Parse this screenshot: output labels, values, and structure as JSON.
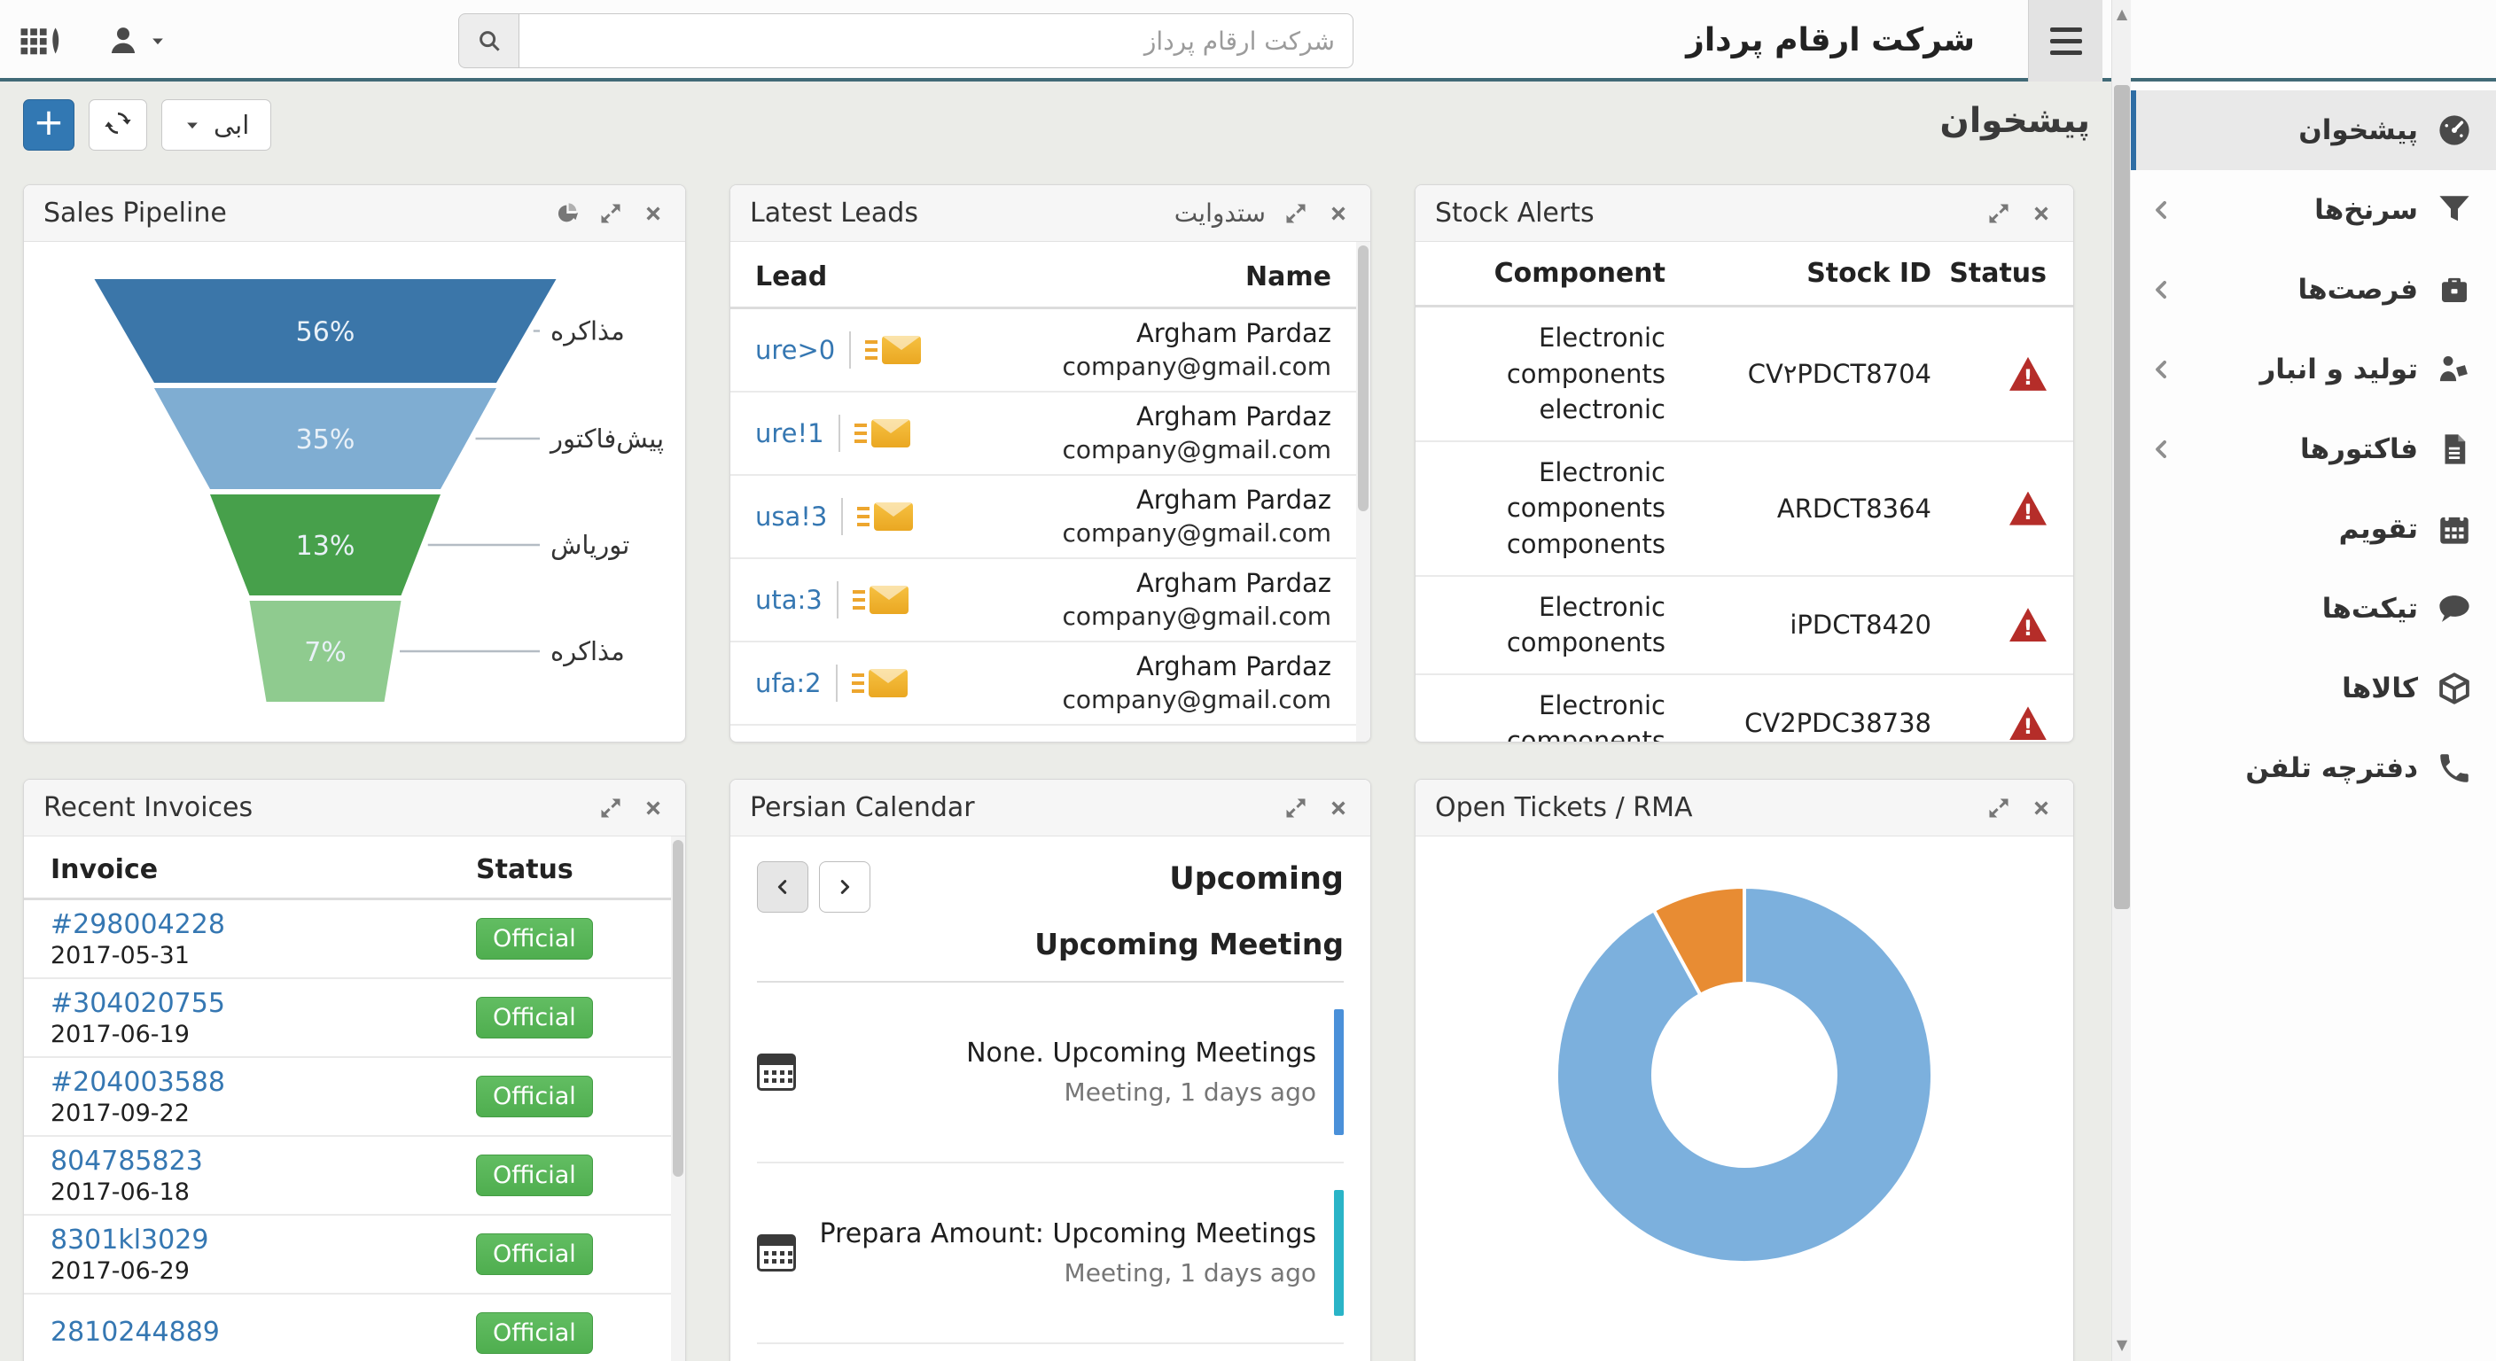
{
  "topbar": {
    "title": "شرکت ارقام پرداز",
    "search_placeholder": "شرکت ارقام پرداز"
  },
  "toolbar": {
    "add_label": "+",
    "theme_label": "ابی",
    "breadcrumb": "پیشخوان"
  },
  "sidebar": {
    "items": [
      {
        "label": "پیشخوان",
        "icon": "dashboard",
        "active": true,
        "chevron": false
      },
      {
        "label": "سرنخ‌ها",
        "icon": "filter",
        "active": false,
        "chevron": true
      },
      {
        "label": "فرصت‌ها",
        "icon": "briefcase",
        "active": false,
        "chevron": true
      },
      {
        "label": "تولید و انبار",
        "icon": "production",
        "active": false,
        "chevron": true
      },
      {
        "label": "فاکتورها",
        "icon": "invoice",
        "active": false,
        "chevron": true
      },
      {
        "label": "تقویم",
        "icon": "calendar",
        "active": false,
        "chevron": false
      },
      {
        "label": "تیکت‌ها",
        "icon": "ticket",
        "active": false,
        "chevron": false
      },
      {
        "label": "کالاها",
        "icon": "product",
        "active": false,
        "chevron": false
      },
      {
        "label": "دفترچه تلفن",
        "icon": "phone",
        "active": false,
        "chevron": false
      }
    ]
  },
  "widgets": {
    "sales_pipeline": {
      "title": "Sales Pipeline"
    },
    "latest_leads": {
      "title": "Latest Leads",
      "subtitle": "ستدوایت",
      "col_lead": "Lead",
      "col_name": "Name",
      "rows": [
        {
          "lead": "ure>0",
          "name": "Argham Pardaz",
          "email": "company@gmail.com"
        },
        {
          "lead": "ure!1",
          "name": "Argham Pardaz",
          "email": "company@gmail.com"
        },
        {
          "lead": "usa!3",
          "name": "Argham Pardaz",
          "email": "company@gmail.com"
        },
        {
          "lead": "uta:3",
          "name": "Argham Pardaz",
          "email": "company@gmail.com"
        },
        {
          "lead": "ufa:2",
          "name": "Argham Pardaz",
          "email": "company@gmail.com"
        }
      ]
    },
    "stock_alerts": {
      "title": "Stock Alerts",
      "col_component": "Component",
      "col_stock_id": "Stock ID",
      "col_status": "Status",
      "rows": [
        {
          "component": "Electronic components",
          "component2": "electronic",
          "stock_id": "CV۲PDCT8704"
        },
        {
          "component": "Electronic components",
          "component2": "components",
          "stock_id": "ARDCT8364"
        },
        {
          "component": "Electronic components",
          "component2": "",
          "stock_id": "iPDCT8420"
        },
        {
          "component": "Electronic components",
          "component2": "",
          "stock_id": "CV2PDC38738"
        }
      ]
    },
    "recent_invoices": {
      "title": "Recent Invoices",
      "col_invoice": "Invoice",
      "col_status": "Status",
      "rows": [
        {
          "number": "#298004228",
          "date": "2017-05-31",
          "status": "Official"
        },
        {
          "number": "#304020755",
          "date": "2017-06-19",
          "status": "Official"
        },
        {
          "number": "#204003588",
          "date": "2017-09-22",
          "status": "Official"
        },
        {
          "number": "804785823",
          "date": "2017-06-18",
          "status": "Official"
        },
        {
          "number": "8301kl3029",
          "date": "2017-06-29",
          "status": "Official"
        },
        {
          "number": "2810244889",
          "date": "",
          "status": "Official"
        }
      ]
    },
    "persian_calendar": {
      "title": "Persian Calendar",
      "heading1": "Upcoming",
      "heading2": "Upcoming Meeting",
      "events": [
        {
          "title": "None. Upcoming Meetings",
          "meta": "Meeting, 1 days ago",
          "color": "#4a90d9"
        },
        {
          "title": "Prepara Amount: Upcoming Meetings",
          "meta": "Meeting, 1 days ago",
          "color": "#2ab4c7"
        }
      ]
    },
    "open_tickets": {
      "title": "Open Tickets / RMA"
    }
  },
  "chart_data": [
    {
      "type": "funnel",
      "title": "Sales Pipeline",
      "stages": [
        {
          "label": "مذاکره",
          "value": 56
        },
        {
          "label": "پیش‌فاکتور",
          "value": 35
        },
        {
          "label": "توریاش",
          "value": 13
        },
        {
          "label": "مذاکره",
          "value": 7
        }
      ],
      "value_format": "percent",
      "colors": [
        "#3b76a9",
        "#7fadd2",
        "#47a04b",
        "#8fcb8f"
      ],
      "label_position": "right-callout"
    },
    {
      "type": "donut",
      "title": "Open Tickets / RMA",
      "segments": [
        {
          "value": 92,
          "color": "#7cb0dd"
        },
        {
          "value": 8,
          "color": "#e88c33"
        }
      ],
      "start_angle_deg": 0,
      "legend": false
    }
  ]
}
